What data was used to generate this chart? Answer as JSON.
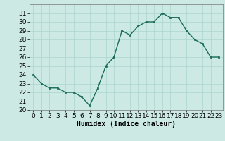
{
  "x": [
    0,
    1,
    2,
    3,
    4,
    5,
    6,
    7,
    8,
    9,
    10,
    11,
    12,
    13,
    14,
    15,
    16,
    17,
    18,
    19,
    20,
    21,
    22,
    23
  ],
  "y": [
    24,
    23,
    22.5,
    22.5,
    22,
    22,
    21.5,
    20.5,
    22.5,
    25,
    26,
    29,
    28.5,
    29.5,
    30,
    30,
    31,
    30.5,
    30.5,
    29,
    28,
    27.5,
    26,
    26
  ],
  "line_color": "#1a6b5a",
  "marker_color": "#1a6b5a",
  "bg_color": "#cce9e4",
  "grid_color": "#aad5cc",
  "xlabel": "Humidex (Indice chaleur)",
  "ylim": [
    20,
    32
  ],
  "xlim": [
    -0.5,
    23.5
  ],
  "yticks": [
    20,
    21,
    22,
    23,
    24,
    25,
    26,
    27,
    28,
    29,
    30,
    31
  ],
  "xticks": [
    0,
    1,
    2,
    3,
    4,
    5,
    6,
    7,
    8,
    9,
    10,
    11,
    12,
    13,
    14,
    15,
    16,
    17,
    18,
    19,
    20,
    21,
    22,
    23
  ],
  "label_fontsize": 7,
  "tick_fontsize": 6.5
}
